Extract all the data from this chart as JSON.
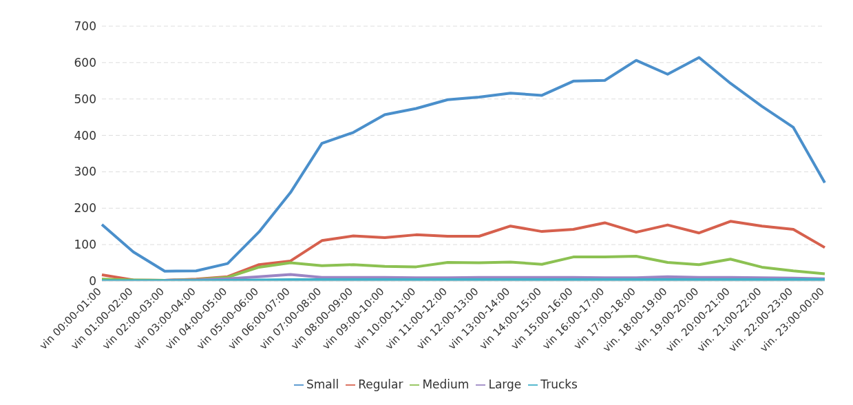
{
  "chart_data": {
    "type": "line",
    "categories": [
      "vin 00:00-01:00",
      "vin 01:00-02:00",
      "vin 02:00-03:00",
      "vin 03:00-04:00",
      "vin 04:00-05:00",
      "vin 05:00-06:00",
      "vin 06:00-07:00",
      "vin 07:00-08:00",
      "vin 08:00-09:00",
      "vin 09:00-10:00",
      "vin 10:00-11:00",
      "vin 11:00-12:00",
      "vin 12:00-13:00",
      "vin 13:00-14:00",
      "vin 14:00-15:00",
      "vin 15:00-16:00",
      "vin 16:00-17:00",
      "vin 17:00-18:00",
      "vin. 18:00-19:00",
      "vin. 19:00-20:00",
      "vin. 20:00-21:00",
      "vin. 21:00-22:00",
      "vin. 22:00-23:00",
      "vin. 23:00-00:00"
    ],
    "series": [
      {
        "name": "Small",
        "color": "#4a8fcb",
        "values": [
          155,
          80,
          27,
          28,
          48,
          135,
          243,
          378,
          408,
          457,
          474,
          498,
          505,
          516,
          510,
          549,
          551,
          606,
          568,
          614,
          543,
          480,
          422,
          270
        ]
      },
      {
        "name": "Regular",
        "color": "#d6604d",
        "values": [
          17,
          3,
          2,
          5,
          12,
          45,
          55,
          111,
          124,
          119,
          127,
          123,
          123,
          151,
          136,
          142,
          160,
          134,
          154,
          132,
          164,
          151,
          142,
          92
        ]
      },
      {
        "name": "Medium",
        "color": "#8cc152",
        "values": [
          5,
          3,
          2,
          4,
          10,
          38,
          50,
          42,
          45,
          40,
          39,
          51,
          50,
          52,
          46,
          66,
          66,
          68,
          51,
          45,
          60,
          38,
          28,
          20
        ]
      },
      {
        "name": "Large",
        "color": "#9b85c4",
        "values": [
          null,
          null,
          2,
          3,
          6,
          12,
          18,
          10,
          10,
          10,
          9,
          9,
          10,
          10,
          10,
          10,
          9,
          9,
          12,
          10,
          10,
          9,
          8,
          6
        ]
      },
      {
        "name": "Trucks",
        "color": "#3fb0c9",
        "values": [
          1,
          1,
          1,
          1,
          2,
          3,
          4,
          4,
          4,
          4,
          4,
          4,
          4,
          4,
          4,
          4,
          4,
          4,
          4,
          4,
          4,
          4,
          4,
          4
        ]
      }
    ],
    "ylim": [
      0,
      700
    ],
    "yticks": [
      0,
      100,
      200,
      300,
      400,
      500,
      600,
      700
    ],
    "grid": "y",
    "legend": "bottom",
    "marker": "none",
    "line_style": "solid"
  }
}
